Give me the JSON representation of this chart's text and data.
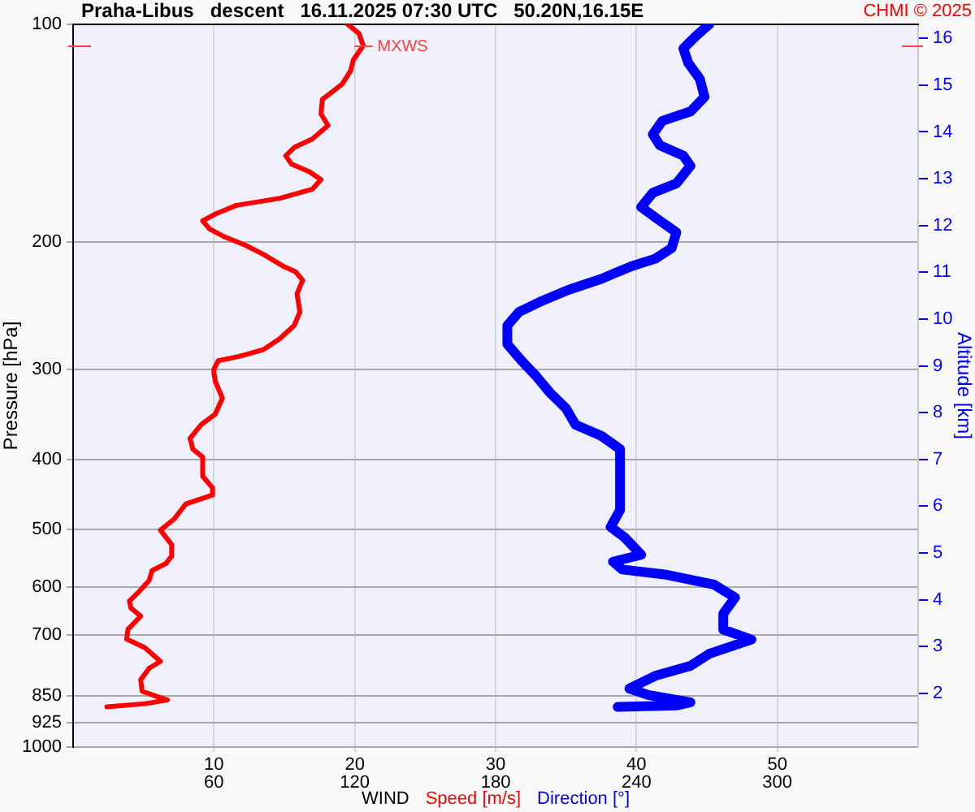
{
  "chart_data": {
    "type": "line",
    "title": "Praha-Libus   descent   16.11.2025 07:30 UTC   50.20N,16.15E",
    "xlabel": "WIND",
    "ylabel": "Pressure [hPa]",
    "y2label": "Altitude [km]",
    "annotations": [
      "CHMI © 2025"
    ],
    "xlim": [
      0,
      60
    ],
    "xticks": [
      10,
      20,
      30,
      40,
      50
    ],
    "x2lim": [
      0,
      360
    ],
    "x2ticks": [
      60,
      120,
      180,
      240,
      300
    ],
    "ylim": [
      1000,
      100
    ],
    "yticks": [
      100,
      200,
      300,
      400,
      500,
      600,
      700,
      850,
      925,
      1000
    ],
    "y2lim": [
      0.85,
      16.3
    ],
    "y2ticks": [
      2,
      3,
      4,
      5,
      6,
      7,
      8,
      9,
      10,
      11,
      12,
      13,
      14,
      15,
      16
    ],
    "log": true,
    "grid": true,
    "legend": "bottom",
    "marker": "none",
    "line_style": "solid",
    "ref_lines": [
      {
        "axis": "y",
        "value": 107,
        "label": "MXWS",
        "color": "#ff4040"
      }
    ],
    "series": [
      {
        "name": "Speed [m/s]",
        "color": "#ff0000",
        "x": [
          19.5,
          20.3,
          20.6,
          19.9,
          19.7,
          19.1,
          18.4,
          17.7,
          17.6,
          18.1,
          17.0,
          15.7,
          15.1,
          15.5,
          16.8,
          17.6,
          17.0,
          14.7,
          11.6,
          10.1,
          9.2,
          9.7,
          10.8,
          12.2,
          13.5,
          14.9,
          15.8,
          16.3,
          15.9,
          16.1,
          15.7,
          14.7,
          13.5,
          11.8,
          10.3,
          10.0,
          10.0,
          10.1,
          10.6,
          10.1,
          9.1,
          8.3,
          8.5,
          9.2,
          9.2,
          9.9,
          9.9,
          8.0,
          7.2,
          6.2,
          7.0,
          7.0,
          6.6,
          5.6,
          5.4,
          4.7,
          4.0,
          4.1,
          4.8,
          3.9,
          3.8,
          5.1,
          6.2,
          5.4,
          4.8,
          4.9,
          6.0,
          6.7,
          5.1,
          2.4
        ],
        "values": [
          100,
          103,
          107,
          112,
          116,
          121,
          124,
          127,
          133,
          138,
          144,
          148,
          152,
          156,
          160,
          164,
          169,
          174,
          178,
          183,
          187,
          192,
          197,
          202,
          208,
          216,
          220,
          226,
          236,
          250,
          261,
          272,
          282,
          288,
          292,
          300,
          304,
          312,
          329,
          346,
          358,
          374,
          387,
          397,
          422,
          438,
          448,
          461,
          483,
          501,
          525,
          544,
          557,
          570,
          588,
          609,
          628,
          642,
          659,
          687,
          709,
          729,
          761,
          778,
          807,
          837,
          852,
          861,
          871,
          880
        ]
      },
      {
        "name": "Direction [°]",
        "color": "#0000ff",
        "axis": "x2",
        "x": [
          271,
          265,
          260,
          262,
          267,
          269,
          263,
          251,
          247,
          250,
          260,
          263,
          257,
          247,
          242,
          248,
          257,
          255,
          248,
          238,
          225,
          211,
          199,
          190,
          185,
          185,
          191,
          197,
          203,
          210,
          214,
          225,
          233,
          233,
          229,
          235,
          242,
          230,
          234,
          252,
          273,
          282,
          277,
          277,
          289,
          271,
          263,
          248,
          237,
          245,
          263,
          257,
          232
        ],
        "values": [
          100,
          104,
          108,
          113,
          119,
          126,
          132,
          136,
          142,
          147,
          152,
          157,
          166,
          171,
          179,
          185,
          194,
          204,
          211,
          216,
          225,
          233,
          242,
          250,
          261,
          277,
          292,
          306,
          323,
          340,
          358,
          371,
          387,
          470,
          496,
          513,
          542,
          554,
          568,
          577,
          596,
          621,
          654,
          688,
          710,
          743,
          772,
          797,
          830,
          847,
          867,
          876,
          880
        ]
      }
    ]
  }
}
